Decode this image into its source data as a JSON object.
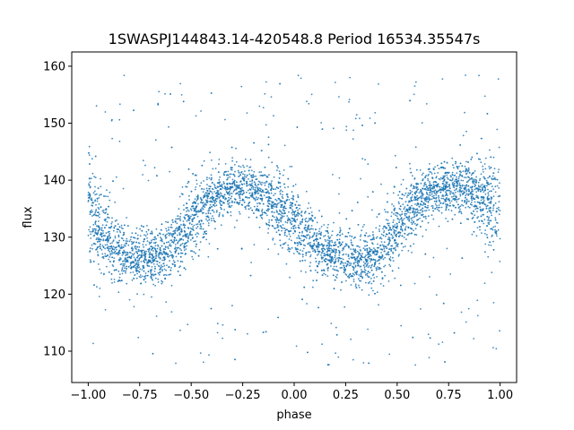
{
  "chart_data": {
    "type": "scatter",
    "title": "1SWASPJ144843.14-420548.8 Period 16534.35547s",
    "xlabel": "phase",
    "ylabel": "flux",
    "xlim": [
      -1.08,
      1.08
    ],
    "ylim": [
      104.5,
      162.5
    ],
    "x_ticks": [
      -1.0,
      -0.75,
      -0.5,
      -0.25,
      0.0,
      0.25,
      0.5,
      0.75,
      1.0
    ],
    "x_tick_labels": [
      "−1.00",
      "−0.75",
      "−0.50",
      "−0.25",
      "0.00",
      "0.25",
      "0.50",
      "0.75",
      "1.00"
    ],
    "y_ticks": [
      110,
      120,
      130,
      140,
      150,
      160
    ],
    "y_tick_labels": [
      "110",
      "120",
      "130",
      "140",
      "150",
      "160"
    ],
    "grid": false,
    "marker_color": "#1f77b4",
    "series": [
      {
        "x": [
          -1.0,
          -0.95,
          -0.9,
          -0.85,
          -0.8,
          -0.75,
          -0.7,
          -0.65,
          -0.6,
          -0.55,
          -0.5,
          -0.45,
          -0.4,
          -0.35,
          -0.3,
          -0.25,
          -0.2,
          -0.15,
          -0.1,
          -0.05,
          0.0,
          0.05,
          0.1,
          0.15,
          0.2,
          0.25,
          0.3,
          0.35,
          0.4,
          0.45,
          0.5,
          0.55,
          0.6,
          0.65,
          0.7,
          0.75,
          0.8,
          0.85,
          0.9,
          0.95,
          1.0
        ],
        "y": [
          134.0,
          131.5,
          129.5,
          128.0,
          127.0,
          126.5,
          126.3,
          126.8,
          128.0,
          130.0,
          132.5,
          135.0,
          136.8,
          138.0,
          138.5,
          138.6,
          138.4,
          137.5,
          136.0,
          134.3,
          132.5,
          130.5,
          128.8,
          127.5,
          126.7,
          126.3,
          126.2,
          126.5,
          127.3,
          129.0,
          131.5,
          134.0,
          136.0,
          137.5,
          138.3,
          138.6,
          138.5,
          138.0,
          137.0,
          135.5,
          133.5
        ],
        "scatter_half_width": [
          8.0,
          7.5,
          6.0,
          5.0,
          4.5,
          4.0,
          4.0,
          4.5,
          5.0,
          5.5,
          5.5,
          5.0,
          4.5,
          4.0,
          4.0,
          4.0,
          4.0,
          4.5,
          5.0,
          5.5,
          5.5,
          5.0,
          4.5,
          4.0,
          4.0,
          4.0,
          4.0,
          4.5,
          5.0,
          5.5,
          5.5,
          5.0,
          4.5,
          4.0,
          4.0,
          4.0,
          4.0,
          4.5,
          5.5,
          6.5,
          8.0
        ],
        "outlier_range": [
          107,
          158.5
        ]
      }
    ]
  }
}
